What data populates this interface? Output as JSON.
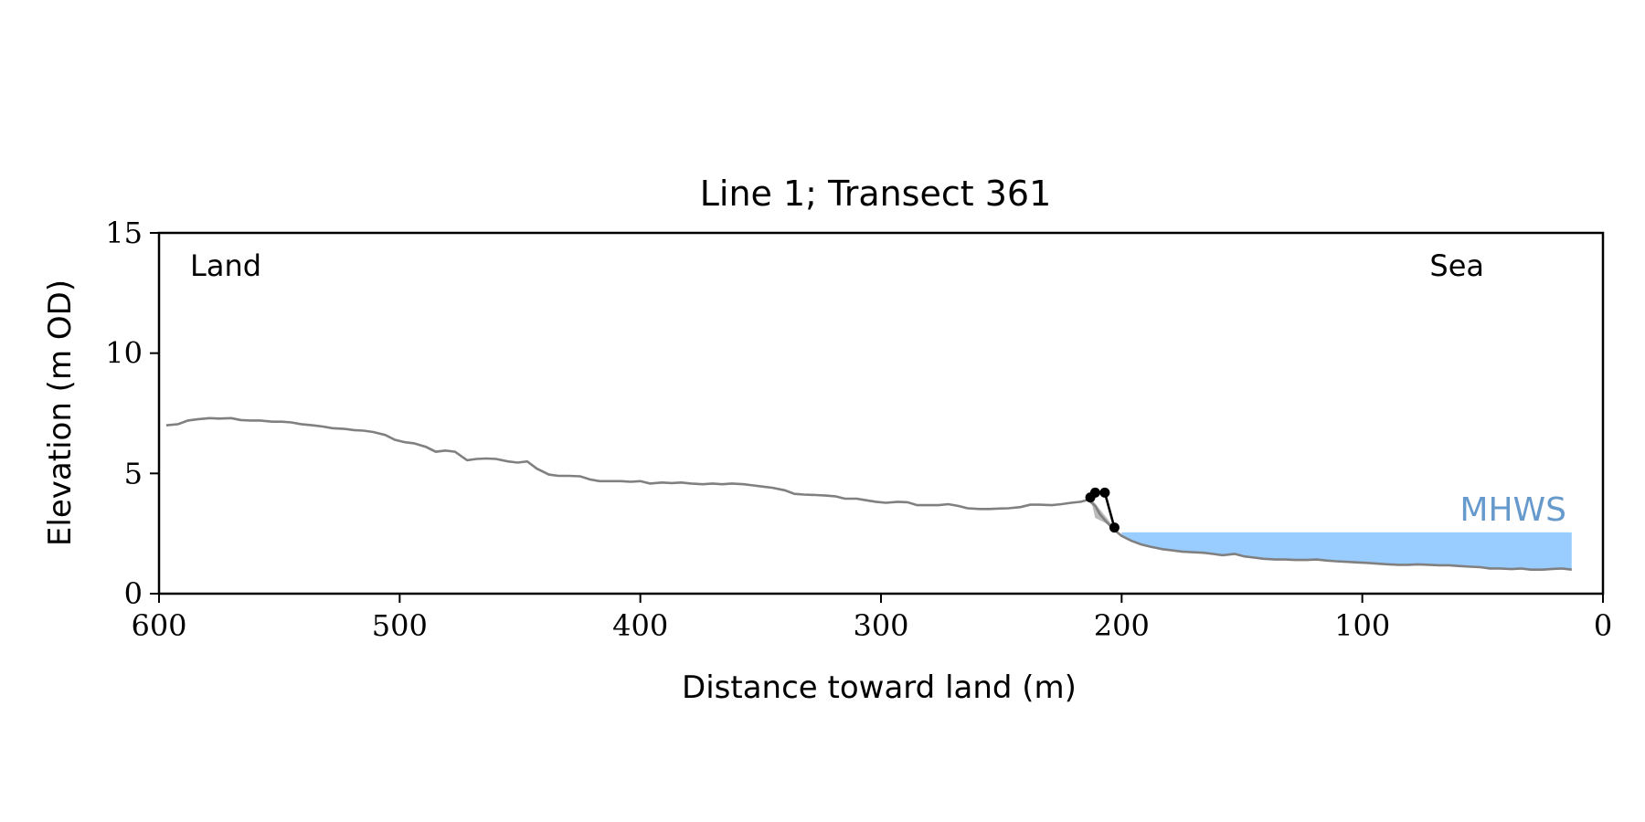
{
  "chart_data": {
    "type": "line",
    "title": "Line 1; Transect 361",
    "xlabel": "Distance toward land (m)",
    "ylabel": "Elevation (m OD)",
    "xlim": [
      600,
      0
    ],
    "ylim": [
      0,
      15
    ],
    "x_inverted": true,
    "xticks": [
      600,
      500,
      400,
      300,
      200,
      100,
      0
    ],
    "yticks": [
      0,
      5,
      10,
      15
    ],
    "grid": false,
    "legend": "none",
    "annotations": {
      "land": "Land",
      "sea": "Sea",
      "mhws": "MHWS"
    },
    "mhws_level": 2.55,
    "mhws_x_range": [
      200,
      13
    ],
    "colors": {
      "profile": "#808080",
      "dune": "#000000",
      "mhws_fill": "#99ccff",
      "mhws_text": "#6699cc",
      "axis": "#000000"
    },
    "series": [
      {
        "role": "profile",
        "x": [
          597,
          592,
          588,
          584,
          579,
          575,
          570,
          566,
          562,
          558,
          553,
          549,
          545,
          541,
          536,
          532,
          528,
          523,
          519,
          515,
          511,
          506,
          502,
          498,
          494,
          489,
          485,
          481,
          477,
          472,
          468,
          464,
          460,
          455,
          451,
          447,
          443,
          438,
          434,
          430,
          425,
          421,
          417,
          413,
          408,
          404,
          400,
          396,
          391,
          387,
          383,
          379,
          374,
          370,
          366,
          362,
          357,
          353,
          349,
          345,
          340,
          336,
          332,
          327,
          323,
          319,
          315,
          310,
          306,
          302,
          298,
          293,
          289,
          285,
          281,
          276,
          272,
          268,
          264,
          259,
          255,
          251,
          247,
          242,
          238,
          234,
          229,
          225,
          221,
          217,
          214,
          211,
          209,
          206,
          203,
          200,
          196,
          192,
          188,
          183,
          179,
          175,
          170,
          166,
          162,
          158,
          153,
          149,
          145,
          141,
          136,
          132,
          128,
          123,
          119,
          115,
          111,
          106,
          102,
          98,
          94,
          89,
          85,
          81,
          77,
          72,
          68,
          64,
          60,
          55,
          51,
          47,
          43,
          38,
          34,
          30,
          25,
          21,
          17,
          13
        ],
        "y": [
          7.0,
          7.05,
          7.2,
          7.25,
          7.3,
          7.28,
          7.3,
          7.22,
          7.2,
          7.2,
          7.15,
          7.15,
          7.12,
          7.05,
          7.0,
          6.95,
          6.88,
          6.85,
          6.8,
          6.78,
          6.72,
          6.6,
          6.4,
          6.3,
          6.25,
          6.1,
          5.9,
          5.95,
          5.9,
          5.55,
          5.6,
          5.62,
          5.6,
          5.5,
          5.45,
          5.5,
          5.2,
          4.95,
          4.9,
          4.9,
          4.88,
          4.75,
          4.68,
          4.68,
          4.68,
          4.65,
          4.68,
          4.58,
          4.62,
          4.6,
          4.62,
          4.58,
          4.55,
          4.58,
          4.55,
          4.58,
          4.55,
          4.5,
          4.45,
          4.4,
          4.3,
          4.15,
          4.12,
          4.1,
          4.08,
          4.05,
          3.95,
          3.95,
          3.88,
          3.82,
          3.78,
          3.82,
          3.8,
          3.68,
          3.68,
          3.68,
          3.72,
          3.65,
          3.55,
          3.52,
          3.52,
          3.54,
          3.55,
          3.6,
          3.7,
          3.7,
          3.68,
          3.72,
          3.78,
          3.82,
          3.9,
          3.65,
          3.3,
          2.95,
          2.65,
          2.4,
          2.2,
          2.05,
          1.95,
          1.85,
          1.8,
          1.75,
          1.72,
          1.7,
          1.65,
          1.6,
          1.65,
          1.55,
          1.5,
          1.45,
          1.42,
          1.42,
          1.4,
          1.4,
          1.42,
          1.38,
          1.35,
          1.32,
          1.3,
          1.28,
          1.25,
          1.22,
          1.2,
          1.2,
          1.22,
          1.2,
          1.18,
          1.18,
          1.15,
          1.12,
          1.1,
          1.05,
          1.05,
          1.02,
          1.05,
          1.0,
          1.0,
          1.03,
          1.05,
          1.0
        ]
      },
      {
        "role": "dune",
        "x": [
          213,
          211,
          207,
          203
        ],
        "y": [
          4.0,
          4.2,
          4.2,
          2.75
        ]
      }
    ]
  }
}
